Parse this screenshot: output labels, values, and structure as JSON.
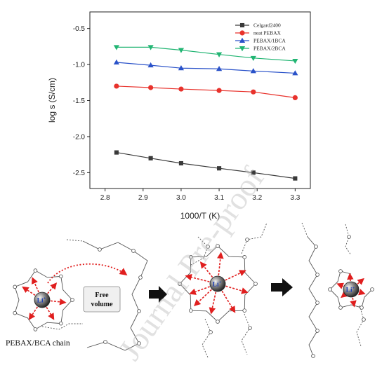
{
  "chart_data": {
    "type": "line",
    "xlabel": "1000/T (K)",
    "ylabel": "log s (S/cm)",
    "xlim": [
      2.76,
      3.34
    ],
    "ylim": [
      -2.72,
      -0.27
    ],
    "xticks": [
      "2.8",
      "2.9",
      "3.0",
      "3.1",
      "3.2",
      "3.3"
    ],
    "yticks": [
      "-0.5",
      "-1.0",
      "-1.5",
      "-2.0",
      "-2.5"
    ],
    "x": [
      2.83,
      2.92,
      3.0,
      3.1,
      3.19,
      3.3
    ],
    "legend_position": "top-right",
    "series": [
      {
        "name": "Celgard2400",
        "color": "#3a3a3a",
        "marker": "square",
        "values": [
          -2.22,
          -2.3,
          -2.37,
          -2.44,
          -2.5,
          -2.58
        ]
      },
      {
        "name": "neat PEBAX",
        "color": "#e8322c",
        "marker": "circle",
        "values": [
          -1.3,
          -1.32,
          -1.34,
          -1.36,
          -1.38,
          -1.46
        ]
      },
      {
        "name": "PEBAX/1BCA",
        "color": "#2a52c9",
        "marker": "triangle-up",
        "values": [
          -0.97,
          -1.01,
          -1.05,
          -1.06,
          -1.09,
          -1.12
        ]
      },
      {
        "name": "PEBAX/2BCA",
        "color": "#22b573",
        "marker": "triangle-down",
        "values": [
          -0.76,
          -0.76,
          -0.8,
          -0.86,
          -0.91,
          -0.95
        ]
      }
    ]
  },
  "schematic": {
    "ion_label": "Li",
    "ion_charge": "+",
    "free_volume_label": [
      "Free",
      "volume"
    ],
    "chain_caption": "PEBAX/BCA chain"
  },
  "watermark": "Journal Pre-proof"
}
